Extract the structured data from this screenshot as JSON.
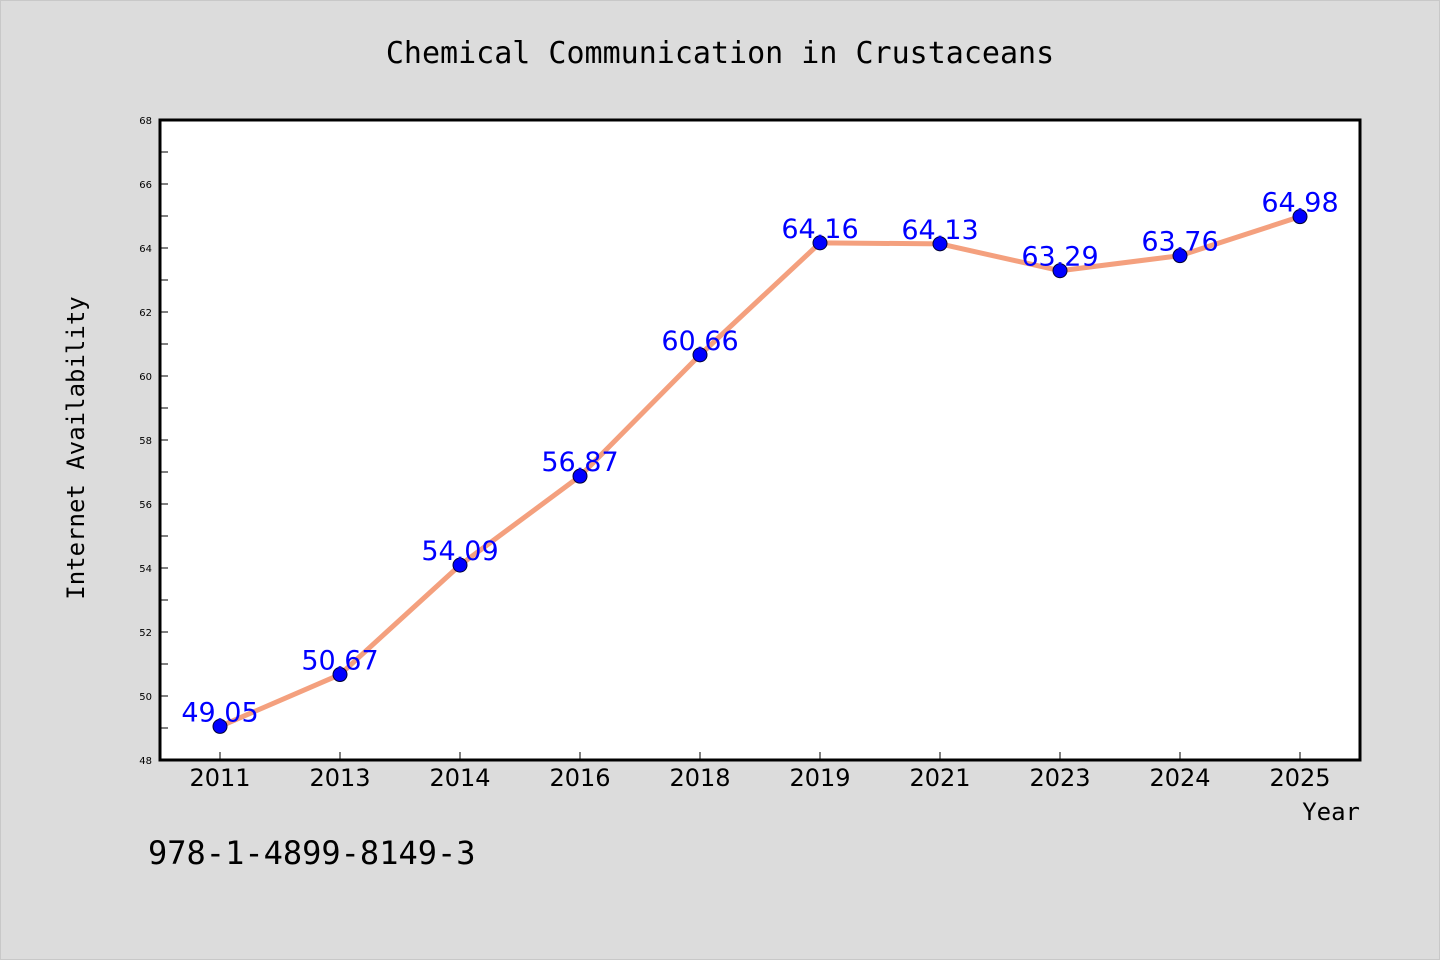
{
  "chart_data": {
    "type": "line",
    "title": "Chemical Communication in Crustaceans",
    "xlabel": "Year",
    "ylabel": "Internet Availability",
    "categories": [
      "2011",
      "2013",
      "2014",
      "2016",
      "2018",
      "2019",
      "2021",
      "2023",
      "2024",
      "2025"
    ],
    "series": [
      {
        "values": [
          49.05,
          50.67,
          54.09,
          56.87,
          60.66,
          64.16,
          64.13,
          63.29,
          63.76,
          64.98
        ],
        "line_color": "#f4a07e",
        "marker_color": "#0000ff"
      }
    ],
    "data_labels": [
      "49.05",
      "50.67",
      "54.09",
      "56.87",
      "60.66",
      "64.16",
      "64.13",
      "63.29",
      "63.76",
      "64.98"
    ],
    "ylim": [
      48,
      68
    ],
    "yticks": [
      "48",
      "50",
      "52",
      "54",
      "56",
      "58",
      "60",
      "62",
      "64",
      "66",
      "68"
    ],
    "grid": false,
    "legend": "none",
    "background_color": "#dcdcdc",
    "plot_background_color": "#ffffff"
  },
  "footnote": "978-1-4899-8149-3"
}
